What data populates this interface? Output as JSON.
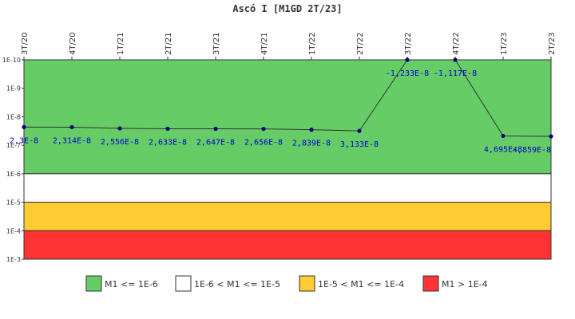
{
  "chart_data": {
    "type": "line",
    "title": "Ascó I [M1GD 2T/23]",
    "categories": [
      "3T/20",
      "4T/20",
      "1T/21",
      "2T/21",
      "3T/21",
      "4T/21",
      "1T/22",
      "2T/22",
      "3T/22",
      "4T/22",
      "1T/23",
      "2T/23"
    ],
    "series": [
      {
        "values": [
          2.3e-08,
          2.314e-08,
          2.556e-08,
          2.633e-08,
          2.647e-08,
          2.656e-08,
          2.839e-08,
          3.133e-08,
          -1.233e-08,
          -1.117e-08,
          4.695e-08,
          4.859e-08
        ],
        "labels": [
          "2,3E-8",
          "2,314E-8",
          "2,556E-8",
          "2,633E-8",
          "2,647E-8",
          "2,656E-8",
          "2,839E-8",
          "3,133E-8",
          "-1,233E-8",
          "-1,117E-8",
          "4,695E-8",
          "4,859E-8"
        ],
        "color": "#000080"
      }
    ],
    "y_scale": "log",
    "y_inverted": true,
    "ylim": [
      1e-10,
      0.001
    ],
    "yticks": [
      {
        "value": 1e-10,
        "label": "1E-10"
      },
      {
        "value": 1e-09,
        "label": "1E-9"
      },
      {
        "value": 1e-08,
        "label": "1E-8"
      },
      {
        "value": 1e-07,
        "label": "1E-7"
      },
      {
        "value": 1e-06,
        "label": "1E-6"
      },
      {
        "value": 1e-05,
        "label": "1E-5"
      },
      {
        "value": 0.0001,
        "label": "1E-4"
      },
      {
        "value": 0.001,
        "label": "1E-3"
      }
    ],
    "bands": [
      {
        "from": 1e-10,
        "to": 1e-06,
        "color": "#66cc66",
        "label": "M1 <= 1E-6"
      },
      {
        "from": 1e-06,
        "to": 1e-05,
        "color": "#ffffff",
        "label": "1E-6 < M1 <= 1E-5"
      },
      {
        "from": 1e-05,
        "to": 0.0001,
        "color": "#ffcc33",
        "label": "1E-5 < M1 <= 1E-4"
      },
      {
        "from": 0.0001,
        "to": 0.001,
        "color": "#ff3333",
        "label": "M1 > 1E-4"
      }
    ],
    "legend_position": "bottom",
    "grid": false
  }
}
